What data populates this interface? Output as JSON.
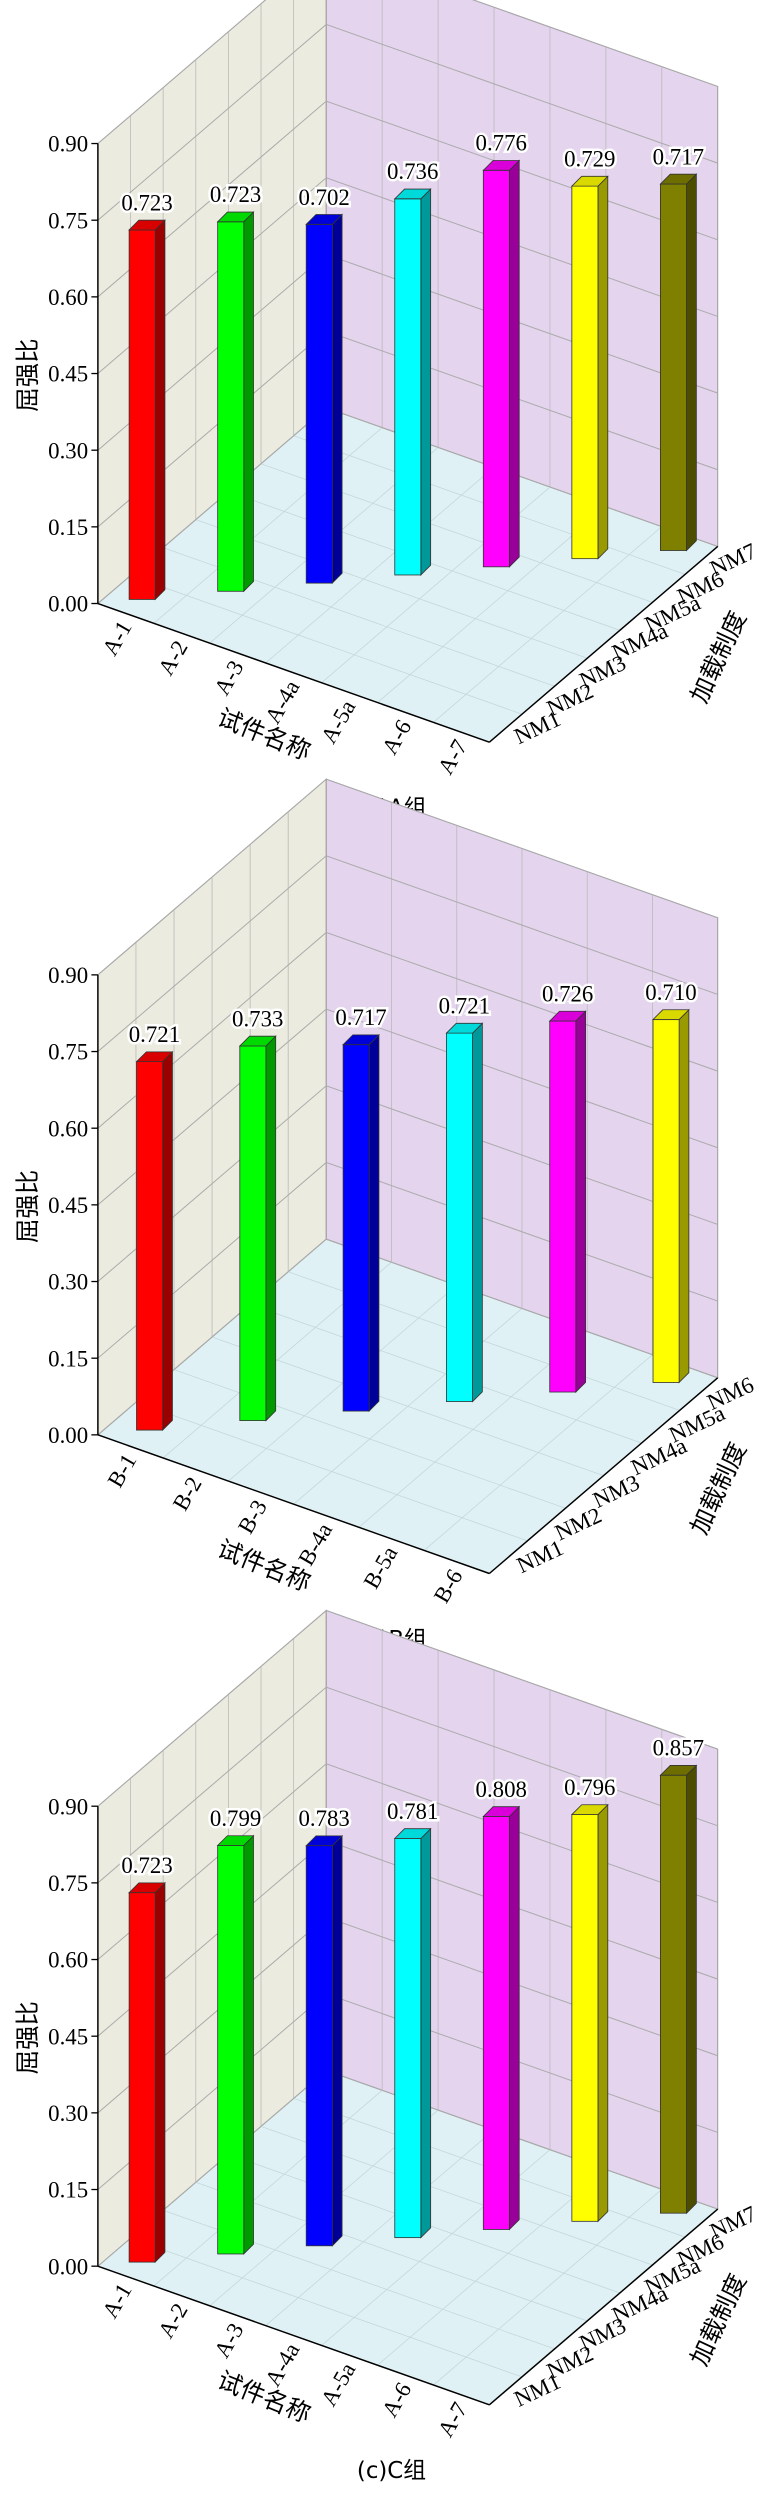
{
  "chart_data": [
    {
      "type": "bar3d",
      "title": "(a)A组",
      "ylabel": "屈强比",
      "xlabel": "试件名称",
      "zlabel": "加载制度",
      "categories": [
        "A-1",
        "A-2",
        "A-3",
        "A-4a",
        "A-5a",
        "A-6",
        "A-7"
      ],
      "depth_categories": [
        "NM1",
        "NM2",
        "NM3",
        "NM4a",
        "NM5a",
        "NM6",
        "NM7"
      ],
      "values": [
        0.723,
        0.723,
        0.702,
        0.736,
        0.776,
        0.729,
        0.717
      ],
      "value_labels": [
        "0.723",
        "0.723",
        "0.702",
        "0.736",
        "0.776",
        "0.729",
        "0.717"
      ],
      "colors": [
        "#ff0000",
        "#00ff00",
        "#0000ff",
        "#00ffff",
        "#ff00ff",
        "#ffff00",
        "#808000"
      ],
      "ylim": [
        0,
        0.9
      ],
      "yticks": [
        {
          "value": 0,
          "label": "0.00"
        },
        {
          "value": 0.15,
          "label": "0.15"
        },
        {
          "value": 0.3,
          "label": "0.30"
        },
        {
          "value": 0.45,
          "label": "0.45"
        },
        {
          "value": 0.6,
          "label": "0.60"
        },
        {
          "value": 0.75,
          "label": "0.75"
        },
        {
          "value": 0.9,
          "label": "0.90"
        }
      ],
      "grid": true
    },
    {
      "type": "bar3d",
      "title": "(b)B组",
      "ylabel": "屈强比",
      "xlabel": "试件名称",
      "zlabel": "加载制度",
      "categories": [
        "B-1",
        "B-2",
        "B-3",
        "B-4a",
        "B-5a",
        "B-6"
      ],
      "depth_categories": [
        "NM1",
        "NM2",
        "NM3",
        "NM4a",
        "NM5a",
        "NM6"
      ],
      "values": [
        0.721,
        0.733,
        0.717,
        0.721,
        0.726,
        0.71
      ],
      "value_labels": [
        "0.721",
        "0.733",
        "0.717",
        "0.721",
        "0.726",
        "0.710"
      ],
      "colors": [
        "#ff0000",
        "#00ff00",
        "#0000ff",
        "#00ffff",
        "#ff00ff",
        "#ffff00"
      ],
      "ylim": [
        0,
        0.9
      ],
      "yticks": [
        {
          "value": 0,
          "label": "0.00"
        },
        {
          "value": 0.15,
          "label": "0.15"
        },
        {
          "value": 0.3,
          "label": "0.30"
        },
        {
          "value": 0.45,
          "label": "0.45"
        },
        {
          "value": 0.6,
          "label": "0.60"
        },
        {
          "value": 0.75,
          "label": "0.75"
        },
        {
          "value": 0.9,
          "label": "0.90"
        }
      ],
      "grid": true
    },
    {
      "type": "bar3d",
      "title": "(c)C组",
      "ylabel": "屈强比",
      "xlabel": "试件名称",
      "zlabel": "加载制度",
      "categories": [
        "A-1",
        "A-2",
        "A-3",
        "A-4a",
        "A-5a",
        "A-6",
        "A-7"
      ],
      "depth_categories": [
        "NM1",
        "NM2",
        "NM3",
        "NM4a",
        "NM5a",
        "NM6",
        "NM7"
      ],
      "values": [
        0.723,
        0.799,
        0.783,
        0.781,
        0.808,
        0.796,
        0.857
      ],
      "value_labels": [
        "0.723",
        "0.799",
        "0.783",
        "0.781",
        "0.808",
        "0.796",
        "0.857"
      ],
      "colors": [
        "#ff0000",
        "#00ff00",
        "#0000ff",
        "#00ffff",
        "#ff00ff",
        "#ffff00",
        "#808000"
      ],
      "ylim": [
        0,
        0.9
      ],
      "yticks": [
        {
          "value": 0,
          "label": "0.00"
        },
        {
          "value": 0.15,
          "label": "0.15"
        },
        {
          "value": 0.3,
          "label": "0.30"
        },
        {
          "value": 0.45,
          "label": "0.45"
        },
        {
          "value": 0.6,
          "label": "0.60"
        },
        {
          "value": 0.75,
          "label": "0.75"
        },
        {
          "value": 0.9,
          "label": "0.90"
        }
      ],
      "grid": true
    }
  ]
}
